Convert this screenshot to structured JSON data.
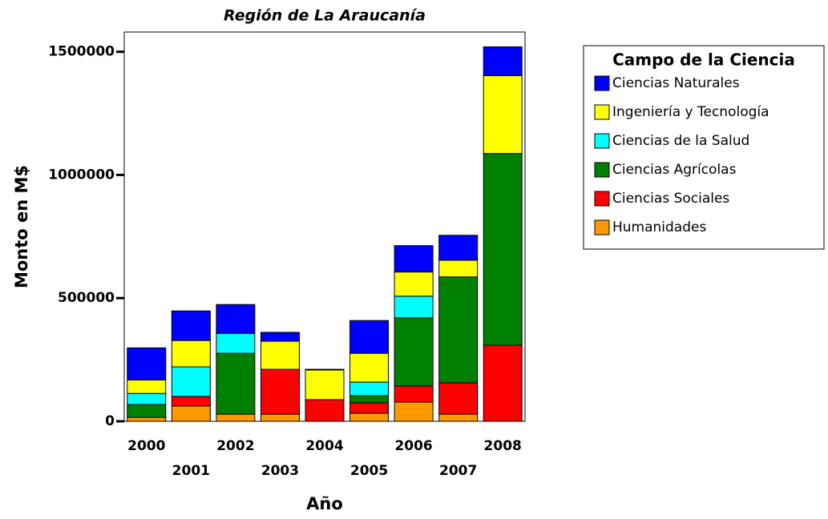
{
  "chart_data": {
    "type": "stacked_bar",
    "title": "Región de La Araucanía",
    "x_label": "Año",
    "y_label": "Monto en M$",
    "categories": [
      "2000",
      "2001",
      "2002",
      "2003",
      "2004",
      "2005",
      "2006",
      "2007",
      "2008"
    ],
    "legend_title": "Campo de la Ciencia",
    "series": [
      {
        "name": "Ciencias Naturales",
        "color": "#0000ff",
        "values": [
          130000,
          120000,
          117000,
          36000,
          3000,
          133000,
          107000,
          101000,
          117000
        ]
      },
      {
        "name": "Ingeniería y Tecnología",
        "color": "#ffff00",
        "values": [
          55000,
          107000,
          0,
          114000,
          120000,
          117000,
          98000,
          68000,
          316000
        ]
      },
      {
        "name": "Ciencias de la Salud",
        "color": "#00ffff",
        "values": [
          45000,
          120000,
          81000,
          0,
          0,
          55000,
          88000,
          0,
          0
        ]
      },
      {
        "name": "Ciencias Agrícolas",
        "color": "#008000",
        "values": [
          52000,
          0,
          247000,
          0,
          0,
          29000,
          277000,
          430000,
          778000
        ]
      },
      {
        "name": "Ciencias Sociales",
        "color": "#ff0000",
        "values": [
          0,
          39000,
          0,
          182000,
          88000,
          42000,
          65000,
          127000,
          309000
        ]
      },
      {
        "name": "Humanidades",
        "color": "#ff9900",
        "values": [
          16000,
          62000,
          29000,
          29000,
          0,
          33000,
          78000,
          29000,
          0
        ]
      }
    ],
    "ylim": [
      0,
      1580000
    ],
    "yticks": [
      0,
      500000,
      1000000,
      1500000
    ],
    "legend_position": "right"
  }
}
